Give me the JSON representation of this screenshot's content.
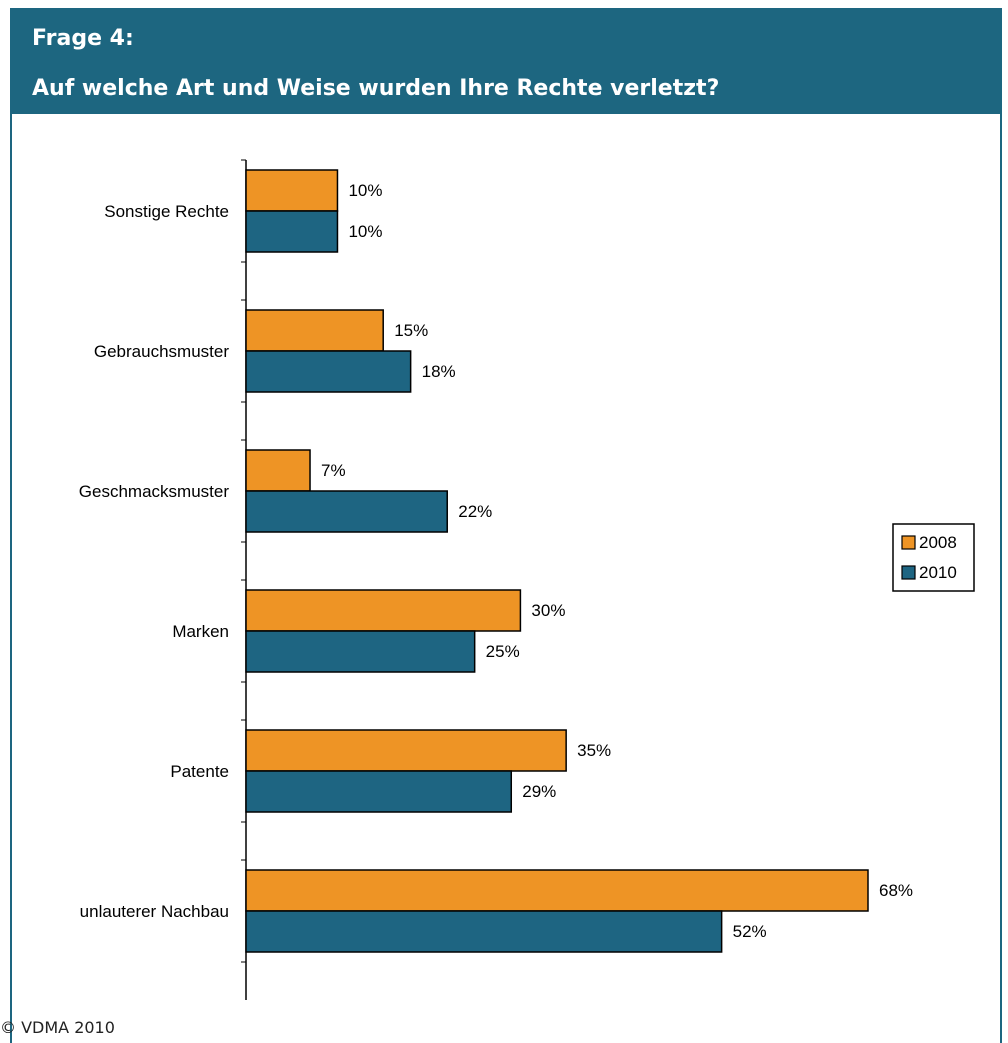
{
  "header": {
    "question": "Frage 4:",
    "title": "Auf welche Art und Weise wurden Ihre Rechte verletzt?"
  },
  "footer": {
    "copyright": "© VDMA 2010"
  },
  "colors": {
    "header_bg": "#1d6680",
    "series_2008": "#ee9425",
    "series_2010": "#1e6582"
  },
  "chart_data": {
    "type": "bar",
    "orientation": "horizontal",
    "categories": [
      "Sonstige Rechte",
      "Gebrauchsmuster",
      "Geschmacksmuster",
      "Marken",
      "Patente",
      "unlauterer Nachbau"
    ],
    "series": [
      {
        "name": "2008",
        "values": [
          10,
          15,
          7,
          30,
          35,
          68
        ],
        "labels": [
          "10%",
          "15%",
          "7%",
          "30%",
          "35%",
          "68%"
        ]
      },
      {
        "name": "2010",
        "values": [
          10,
          18,
          22,
          25,
          29,
          52
        ],
        "labels": [
          "10%",
          "18%",
          "22%",
          "25%",
          "29%",
          "52%"
        ]
      }
    ],
    "unit": "%",
    "xlim": [
      0,
      68
    ],
    "grid": false,
    "legend_position": "right"
  }
}
